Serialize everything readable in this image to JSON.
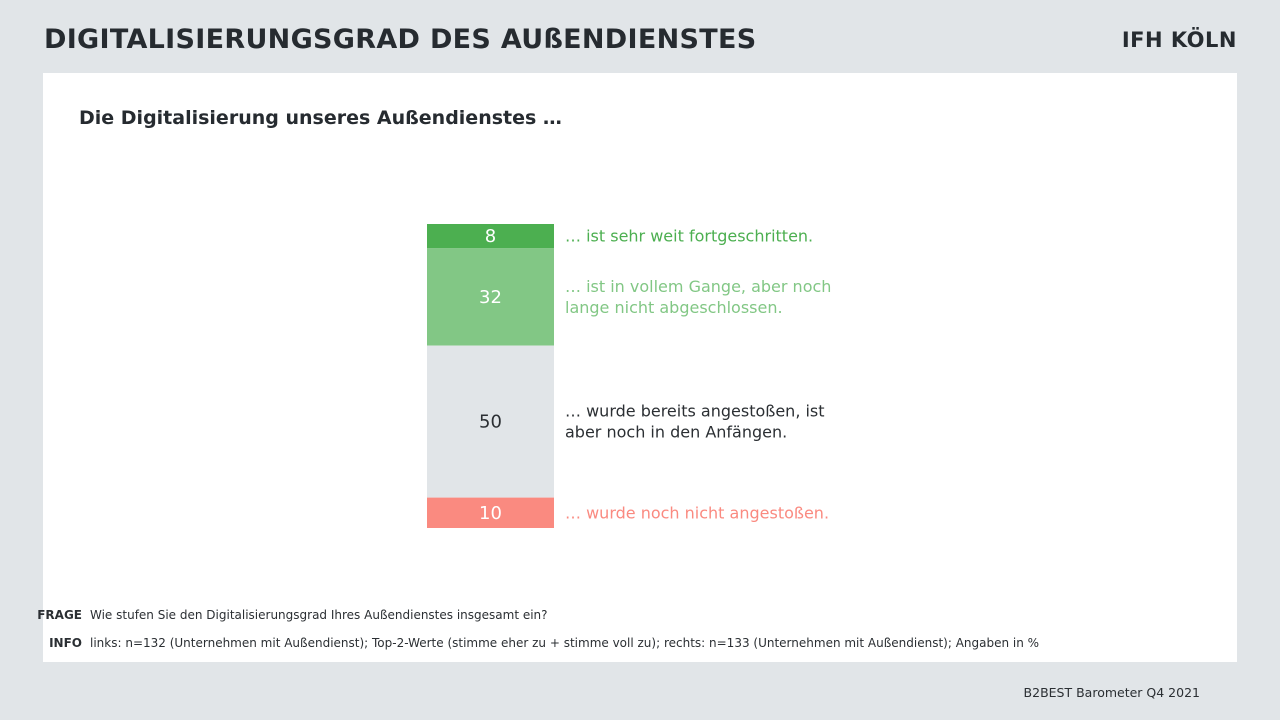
{
  "header": {
    "title": "DIGITALISIERUNGSGRAD DES AUßENDIENSTES",
    "logo": "IFH KÖLN"
  },
  "chart_data": {
    "type": "bar",
    "title": "Die Digitalisierung unseres Außendienstes …",
    "stacked": true,
    "unit": "%",
    "categories": [
      "… ist sehr weit fortgeschritten.",
      "… ist in vollem Gange, aber noch lange nicht abgeschlossen.",
      "… wurde bereits angestoßen, ist aber noch in den Anfängen.",
      "… wurde noch nicht angestoßen."
    ],
    "values": [
      8,
      32,
      50,
      10
    ],
    "label_lines": [
      [
        "… ist sehr weit fortgeschritten."
      ],
      [
        "… ist in vollem Gange, aber noch",
        "lange nicht abgeschlossen."
      ],
      [
        "… wurde bereits angestoßen, ist",
        "aber noch in den Anfängen."
      ],
      [
        "… wurde noch nicht angestoßen."
      ]
    ],
    "colors": [
      "#4caf50",
      "#82c785",
      "#e1e5e8",
      "#fa8a80"
    ],
    "value_text_colors": [
      "#ffffff",
      "#ffffff",
      "#2b2f33",
      "#ffffff"
    ],
    "label_colors": [
      "#4caf50",
      "#82c785",
      "#2b2f33",
      "#fa8a80"
    ]
  },
  "footer": {
    "frage_key": "FRAGE",
    "frage_text": "Wie stufen Sie den Digitalisierungsgrad Ihres Außendienstes insgesamt ein?",
    "info_key": "INFO",
    "info_text": "links: n=132 (Unternehmen mit Außendienst); Top-2-Werte (stimme eher zu + stimme voll zu); rechts: n=133 (Unternehmen mit Außendienst); Angaben in %",
    "source": "B2BEST Barometer Q4 2021"
  }
}
